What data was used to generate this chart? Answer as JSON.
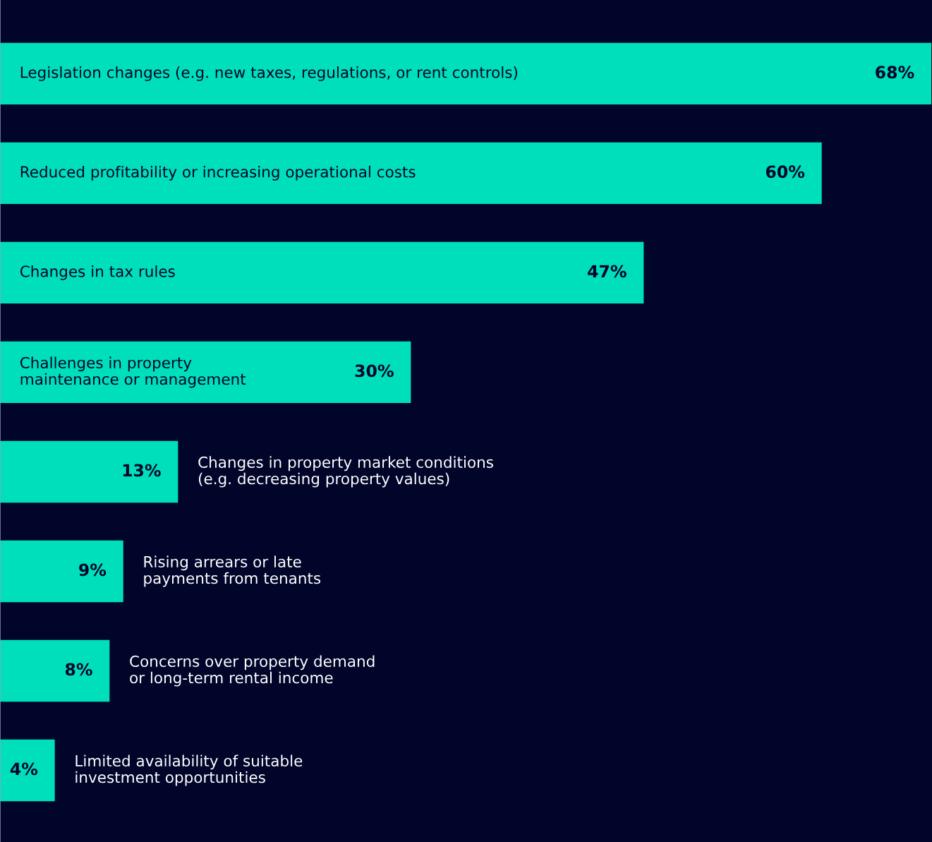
{
  "chart_data": {
    "type": "bar",
    "orientation": "horizontal",
    "categories": [
      "Legislation changes (e.g. new taxes, regulations, or rent controls)",
      "Reduced profitability or increasing operational costs",
      "Changes in tax rules",
      "Challenges in property\nmaintenance or management",
      "Changes in property market conditions\n(e.g. decreasing property values)",
      "Rising arrears or late\npayments from tenants",
      "Concerns over property demand\nor long-term rental income",
      "Limited availability of suitable\ninvestment opportunities"
    ],
    "values": [
      68,
      60,
      47,
      30,
      13,
      9,
      8,
      4
    ],
    "value_labels": [
      "68%",
      "60%",
      "47%",
      "30%",
      "13%",
      "9%",
      "8%",
      "4%"
    ],
    "color": "#00dfbb",
    "xlim": [
      0,
      68
    ]
  }
}
